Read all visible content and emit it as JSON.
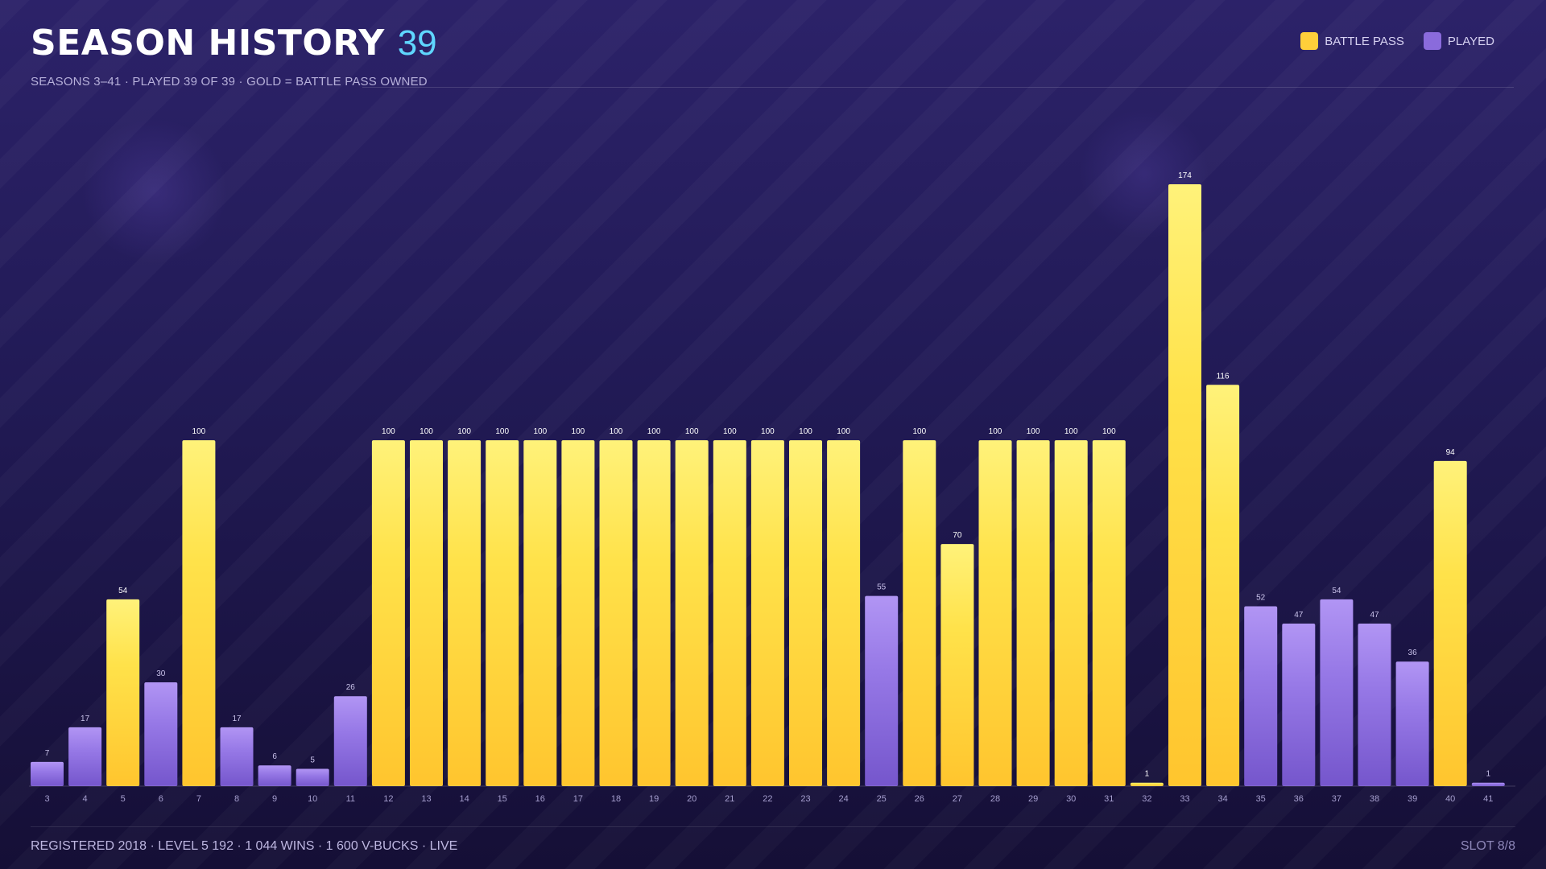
{
  "header": {
    "title": "SEASON HISTORY",
    "count": "39",
    "subtitle": "SEASONS 3–41  ·  PLAYED 39 OF 39  ·  GOLD = BATTLE PASS OWNED"
  },
  "legend": [
    {
      "label": "BATTLE PASS",
      "color": "#ffcf3a"
    },
    {
      "label": "PLAYED",
      "color": "#8a6bdc"
    }
  ],
  "colors": {
    "battle_pass": "#ffd338",
    "played": "#8c6ddc"
  },
  "footer": {
    "left": "REGISTERED 2018  ·  LEVEL 5 192  ·  1 044 WINS  ·  1 600 V-BUCKS  ·  LIVE",
    "right": "SLOT 8/8"
  },
  "chart_data": {
    "type": "bar",
    "grid": false,
    "legend_placement": "top-right",
    "ylim": [
      0,
      174
    ],
    "categories": [
      "3",
      "4",
      "5",
      "6",
      "7",
      "8",
      "9",
      "10",
      "11",
      "12",
      "13",
      "14",
      "15",
      "16",
      "17",
      "18",
      "19",
      "20",
      "21",
      "22",
      "23",
      "24",
      "25",
      "26",
      "27",
      "28",
      "29",
      "30",
      "31",
      "32",
      "33",
      "34",
      "35",
      "36",
      "37",
      "38",
      "39",
      "40",
      "41"
    ],
    "values": [
      7,
      17,
      54,
      30,
      100,
      17,
      6,
      5,
      26,
      100,
      100,
      100,
      100,
      100,
      100,
      100,
      100,
      100,
      100,
      100,
      100,
      100,
      55,
      100,
      70,
      100,
      100,
      100,
      100,
      1,
      174,
      116,
      52,
      47,
      54,
      47,
      36,
      94,
      1
    ],
    "battle_pass": [
      false,
      false,
      true,
      false,
      true,
      false,
      false,
      false,
      false,
      true,
      true,
      true,
      true,
      true,
      true,
      true,
      true,
      true,
      true,
      true,
      true,
      true,
      false,
      true,
      true,
      true,
      true,
      true,
      true,
      true,
      true,
      true,
      false,
      false,
      false,
      false,
      false,
      true,
      false
    ]
  }
}
